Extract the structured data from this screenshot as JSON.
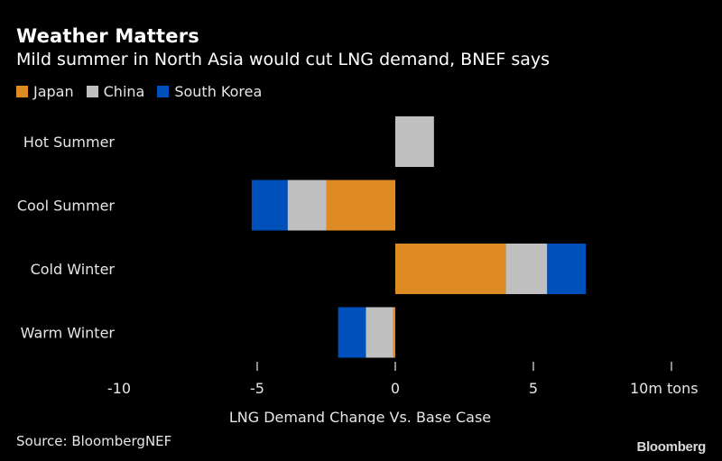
{
  "header": {
    "title": "Weather Matters",
    "subtitle": "Mild summer in North Asia would cut LNG demand, BNEF says"
  },
  "footer": {
    "source": "Source: BloombergNEF",
    "brand": "Bloomberg"
  },
  "chart_data": {
    "type": "bar",
    "orientation": "horizontal",
    "stacked": true,
    "title": "Weather Matters",
    "subtitle": "Mild summer in North Asia would cut LNG demand, BNEF says",
    "xlabel": "LNG Demand Change Vs. Base Case",
    "ylabel": "",
    "xlim": [
      -10,
      10
    ],
    "x_ticks": [
      -10,
      -5,
      0,
      5,
      10
    ],
    "x_tick_labels": [
      "-10",
      "-5",
      "0",
      "5",
      "10m tons"
    ],
    "grid": false,
    "legend_position": "top-left",
    "categories": [
      "Hot Summer",
      "Cool Summer",
      "Cold Winter",
      "Warm Winter"
    ],
    "series": [
      {
        "name": "Japan",
        "color": "#DF8B24",
        "values": [
          0,
          -2.5,
          4.0,
          -0.07
        ]
      },
      {
        "name": "China",
        "color": "#C0C0C0",
        "values": [
          1.4,
          -1.4,
          1.5,
          -1.0
        ]
      },
      {
        "name": "South Korea",
        "color": "#0050BB",
        "values": [
          0,
          -1.3,
          1.4,
          -1.0
        ]
      }
    ]
  }
}
